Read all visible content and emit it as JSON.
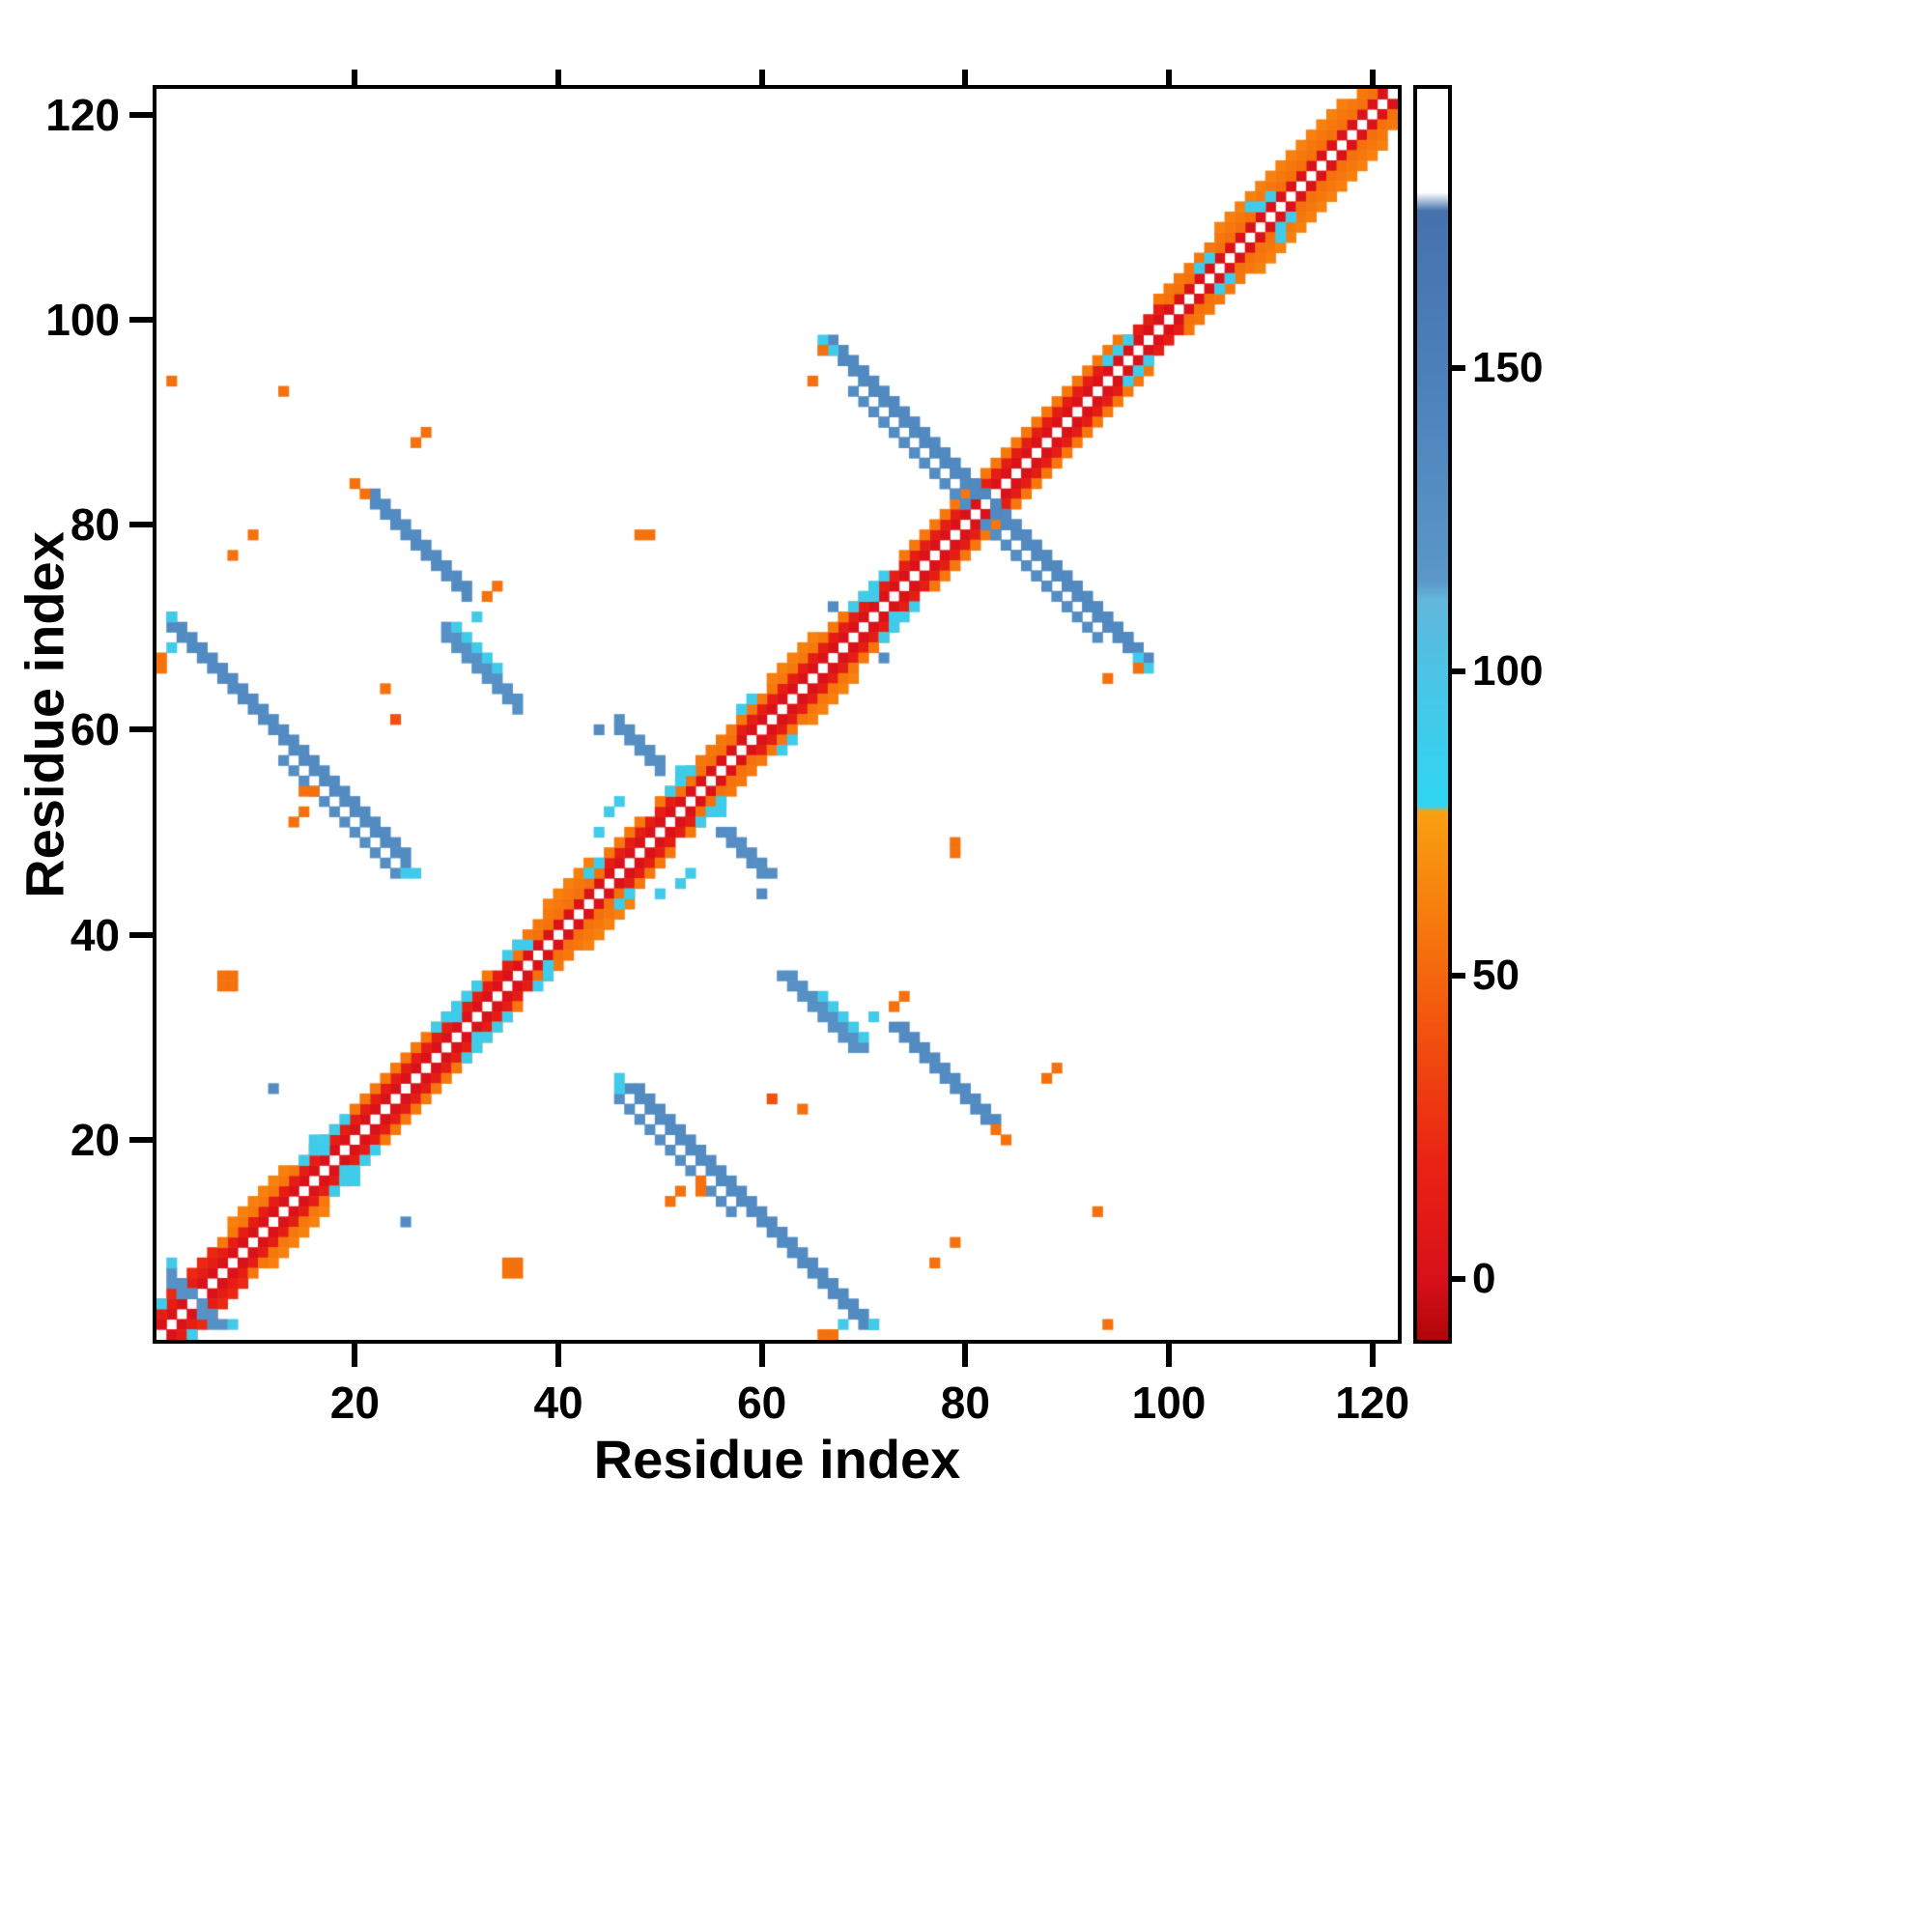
{
  "figure": {
    "title": "",
    "background_color": "#ffffff"
  },
  "chart_data": {
    "type": "heatmap",
    "title": "",
    "xlabel": "Residue index",
    "ylabel": "Residue index",
    "x_range": [
      1,
      122
    ],
    "y_range": [
      1,
      122
    ],
    "x_ticks": [
      20,
      40,
      60,
      80,
      100,
      120
    ],
    "y_ticks": [
      20,
      40,
      60,
      80,
      100,
      120
    ],
    "grid": false,
    "symmetric": true,
    "diagonal_color": "#ffffff",
    "colorbar": {
      "orientation": "vertical",
      "ticks": [
        0,
        50,
        100,
        150
      ],
      "vmin": -10,
      "vmax": 196,
      "stops": [
        [
          -10,
          "#b00508"
        ],
        [
          0,
          "#d8101a"
        ],
        [
          20,
          "#ea2413"
        ],
        [
          40,
          "#f2500f"
        ],
        [
          58,
          "#f6780d"
        ],
        [
          77,
          "#f9a011"
        ],
        [
          78,
          "#2fd5f2"
        ],
        [
          100,
          "#4cc4e6"
        ],
        [
          112,
          "#62b7dc"
        ],
        [
          115,
          "#5b97c9"
        ],
        [
          150,
          "#4b80ba"
        ],
        [
          176,
          "#4672ac"
        ],
        [
          179,
          "#ffffff"
        ],
        [
          196,
          "#ffffff"
        ]
      ]
    },
    "diag_bands": [
      {
        "d": 1,
        "from": 1,
        "to": 121,
        "v": 2
      },
      {
        "d": 2,
        "from": 1,
        "to": 35,
        "v": 14
      },
      {
        "d": 2,
        "from": 36,
        "to": 44,
        "v": 55
      },
      {
        "d": 2,
        "from": 45,
        "to": 51,
        "v": 14
      },
      {
        "d": 2,
        "from": 52,
        "to": 57,
        "v": 55
      },
      {
        "d": 2,
        "from": 58,
        "to": 99,
        "v": 14
      },
      {
        "d": 2,
        "from": 100,
        "to": 121,
        "v": 55
      },
      {
        "d": 3,
        "from": 1,
        "to": 6,
        "v": 22
      },
      {
        "d": 3,
        "from": 7,
        "to": 18,
        "v": 58
      },
      {
        "d": 3,
        "from": 20,
        "to": 33,
        "v": 58
      },
      {
        "d": 3,
        "from": 36,
        "to": 48,
        "v": 58
      },
      {
        "d": 3,
        "from": 50,
        "to": 70,
        "v": 58
      },
      {
        "d": 3,
        "from": 74,
        "to": 95,
        "v": 58
      },
      {
        "d": 3,
        "from": 99,
        "to": 120,
        "v": 58
      },
      {
        "d": 4,
        "from": 8,
        "to": 13,
        "v": 62
      },
      {
        "d": 4,
        "from": 39,
        "to": 43,
        "v": 62
      },
      {
        "d": 4,
        "from": 61,
        "to": 65,
        "v": 62
      },
      {
        "d": 4,
        "from": 105,
        "to": 117,
        "v": 62
      }
    ],
    "antidiag_streaks": [
      {
        "sum": 72,
        "from": 2,
        "to": 25,
        "lines": 2,
        "v": 134
      },
      {
        "sum": 70,
        "from": 13,
        "to": 24,
        "lines": 1,
        "v": 128
      },
      {
        "sum": 104,
        "from": 22,
        "to": 31,
        "lines": 2,
        "v": 134
      },
      {
        "sum": 98,
        "from": 29,
        "to": 36,
        "lines": 2,
        "v": 126
      },
      {
        "sum": 100,
        "from": 30,
        "to": 34,
        "lines": 1,
        "v": 92
      },
      {
        "sum": 164,
        "from": 67,
        "to": 96,
        "lines": 2,
        "v": 136
      },
      {
        "sum": 162,
        "from": 72,
        "to": 93,
        "lines": 1,
        "v": 130
      },
      {
        "sum": 106,
        "from": 46,
        "to": 50,
        "lines": 2,
        "v": 128
      },
      {
        "sum": 8,
        "from": 2,
        "to": 5,
        "lines": 2,
        "v": 124
      }
    ],
    "cells": [
      [
        2,
        94,
        55
      ],
      [
        1,
        66,
        55
      ],
      [
        1,
        67,
        55
      ],
      [
        2,
        68,
        92
      ],
      [
        8,
        77,
        55
      ],
      [
        10,
        79,
        55
      ],
      [
        20,
        84,
        55
      ],
      [
        21,
        83,
        55
      ],
      [
        26,
        88,
        55
      ],
      [
        27,
        89,
        55
      ],
      [
        34,
        74,
        55
      ],
      [
        33,
        73,
        55
      ],
      [
        32,
        71,
        92
      ],
      [
        14,
        51,
        55
      ],
      [
        15,
        52,
        55
      ],
      [
        15,
        54,
        55
      ],
      [
        16,
        54,
        55
      ],
      [
        7,
        35,
        55
      ],
      [
        8,
        35,
        55
      ],
      [
        7,
        36,
        55
      ],
      [
        8,
        36,
        55
      ],
      [
        12,
        25,
        132
      ],
      [
        24,
        61,
        40
      ],
      [
        23,
        64,
        55
      ],
      [
        13,
        93,
        55
      ],
      [
        48,
        79,
        55
      ],
      [
        49,
        79,
        55
      ],
      [
        67,
        72,
        132
      ],
      [
        44,
        60,
        132
      ],
      [
        66,
        97,
        92
      ],
      [
        66,
        98,
        92
      ],
      [
        97,
        67,
        92
      ],
      [
        97,
        66,
        55
      ],
      [
        65,
        94,
        55
      ],
      [
        45,
        52,
        92
      ],
      [
        46,
        53,
        92
      ],
      [
        44,
        50,
        92
      ],
      [
        51,
        54,
        92
      ],
      [
        52,
        56,
        92
      ],
      [
        2,
        71,
        92
      ],
      [
        25,
        46,
        92
      ],
      [
        26,
        46,
        92
      ],
      [
        1,
        4,
        92
      ],
      [
        2,
        8,
        92
      ],
      [
        15,
        18,
        90
      ],
      [
        16,
        19,
        90
      ],
      [
        16,
        20,
        90
      ],
      [
        17,
        19,
        90
      ],
      [
        17,
        20,
        90
      ],
      [
        18,
        21,
        90
      ],
      [
        19,
        22,
        90
      ],
      [
        28,
        31,
        90
      ],
      [
        29,
        32,
        90
      ],
      [
        30,
        33,
        90
      ],
      [
        31,
        34,
        90
      ],
      [
        30,
        32,
        90
      ],
      [
        32,
        35,
        90
      ],
      [
        35,
        38,
        90
      ],
      [
        36,
        39,
        90
      ],
      [
        37,
        39,
        90
      ],
      [
        43,
        46,
        90
      ],
      [
        44,
        47,
        90
      ],
      [
        52,
        55,
        90
      ],
      [
        53,
        56,
        90
      ],
      [
        58,
        62,
        90
      ],
      [
        59,
        63,
        90
      ],
      [
        70,
        73,
        90
      ],
      [
        71,
        74,
        90
      ],
      [
        71,
        73,
        90
      ],
      [
        72,
        75,
        90
      ],
      [
        69,
        72,
        90
      ],
      [
        94,
        96,
        90
      ],
      [
        95,
        97,
        90
      ],
      [
        96,
        98,
        90
      ],
      [
        103,
        105,
        90
      ],
      [
        104,
        106,
        90
      ],
      [
        109,
        111,
        90
      ],
      [
        110,
        112,
        90
      ],
      [
        108,
        111,
        90
      ]
    ]
  }
}
